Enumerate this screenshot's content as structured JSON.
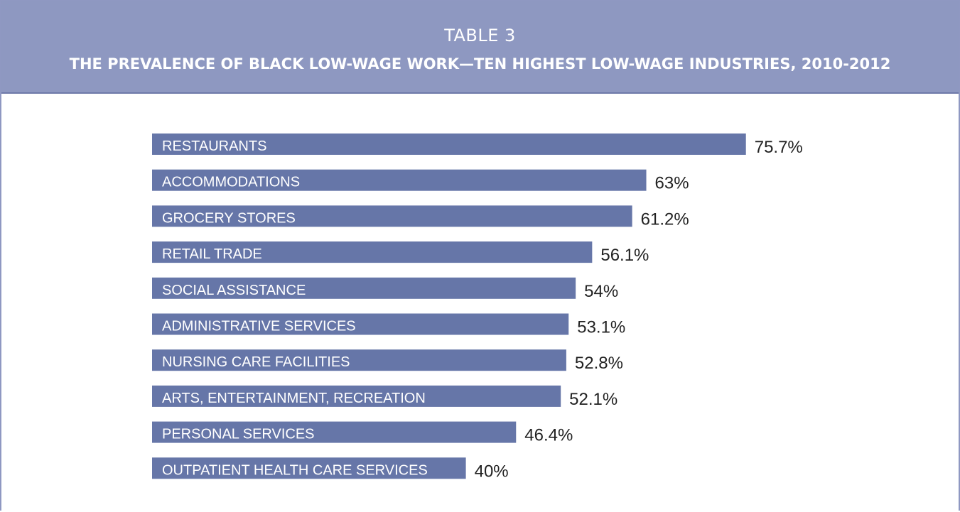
{
  "header": {
    "kicker": "TABLE 3",
    "title": "THE PREVALENCE OF BLACK LOW-WAGE WORK—TEN HIGHEST LOW-WAGE INDUSTRIES, 2010-2012"
  },
  "colors": {
    "header_background": "#8e98c1",
    "bar": "#6676a8",
    "bar_text": "#ffffff",
    "value_text": "#222222"
  },
  "chart_data": {
    "type": "bar",
    "orientation": "horizontal",
    "categories": [
      "RESTAURANTS",
      "ACCOMMODATIONS",
      "GROCERY STORES",
      "RETAIL TRADE",
      "SOCIAL ASSISTANCE",
      "ADMINISTRATIVE SERVICES",
      "NURSING CARE FACILITIES",
      "ARTS, ENTERTAINMENT, RECREATION",
      "PERSONAL SERVICES",
      "OUTPATIENT HEALTH CARE SERVICES"
    ],
    "values": [
      75.7,
      63,
      61.2,
      56.1,
      54,
      53.1,
      52.8,
      52.1,
      46.4,
      40
    ],
    "value_labels": [
      "75.7%",
      "63%",
      "61.2%",
      "56.1%",
      "54%",
      "53.1%",
      "52.8%",
      "52.1%",
      "46.4%",
      "40%"
    ],
    "unit": "%",
    "grid": false,
    "legend": "none"
  }
}
